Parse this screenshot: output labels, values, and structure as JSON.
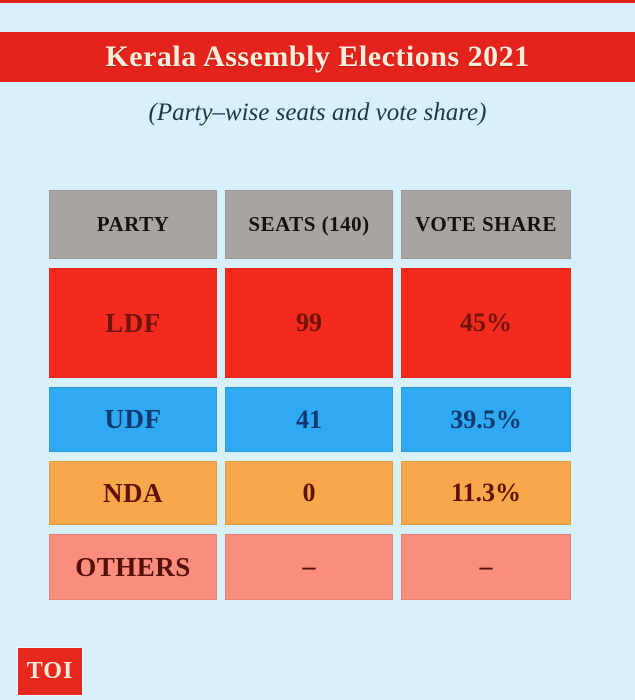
{
  "page": {
    "background_color": "#d7f0f9",
    "accent_red": "#e4231c"
  },
  "header": {
    "title": "Kerala Assembly Elections 2021",
    "subtitle": "(Party–wise seats and vote share)"
  },
  "table": {
    "columns": [
      "PARTY",
      "SEATS (140)",
      "VOTE SHARE"
    ],
    "header_bg": "#a7a4a2",
    "rows": [
      {
        "party": "LDF",
        "seats": "99",
        "vote_share": "45%",
        "bg": "#f32b1e",
        "fg": "#70130b"
      },
      {
        "party": "UDF",
        "seats": "41",
        "vote_share": "39.5%",
        "bg": "#2fa9f2",
        "fg": "#0f3a70"
      },
      {
        "party": "NDA",
        "seats": "0",
        "vote_share": "11.3%",
        "bg": "#f7a84a",
        "fg": "#601209"
      },
      {
        "party": "OTHERS",
        "seats": "–",
        "vote_share": "–",
        "bg": "#f98d7e",
        "fg": "#570e06"
      }
    ]
  },
  "footer": {
    "logo_label": "TOI"
  },
  "chart_data": {
    "type": "table",
    "title": "Kerala Assembly Elections 2021",
    "subtitle": "(Party–wise seats and vote share)",
    "columns": [
      "PARTY",
      "SEATS (140)",
      "VOTE SHARE"
    ],
    "total_seats": 140,
    "categories": [
      "LDF",
      "UDF",
      "NDA",
      "OTHERS"
    ],
    "series": [
      {
        "name": "Seats",
        "values": [
          99,
          41,
          0,
          null
        ]
      },
      {
        "name": "Vote share (%)",
        "values": [
          45,
          39.5,
          11.3,
          null
        ]
      }
    ]
  }
}
